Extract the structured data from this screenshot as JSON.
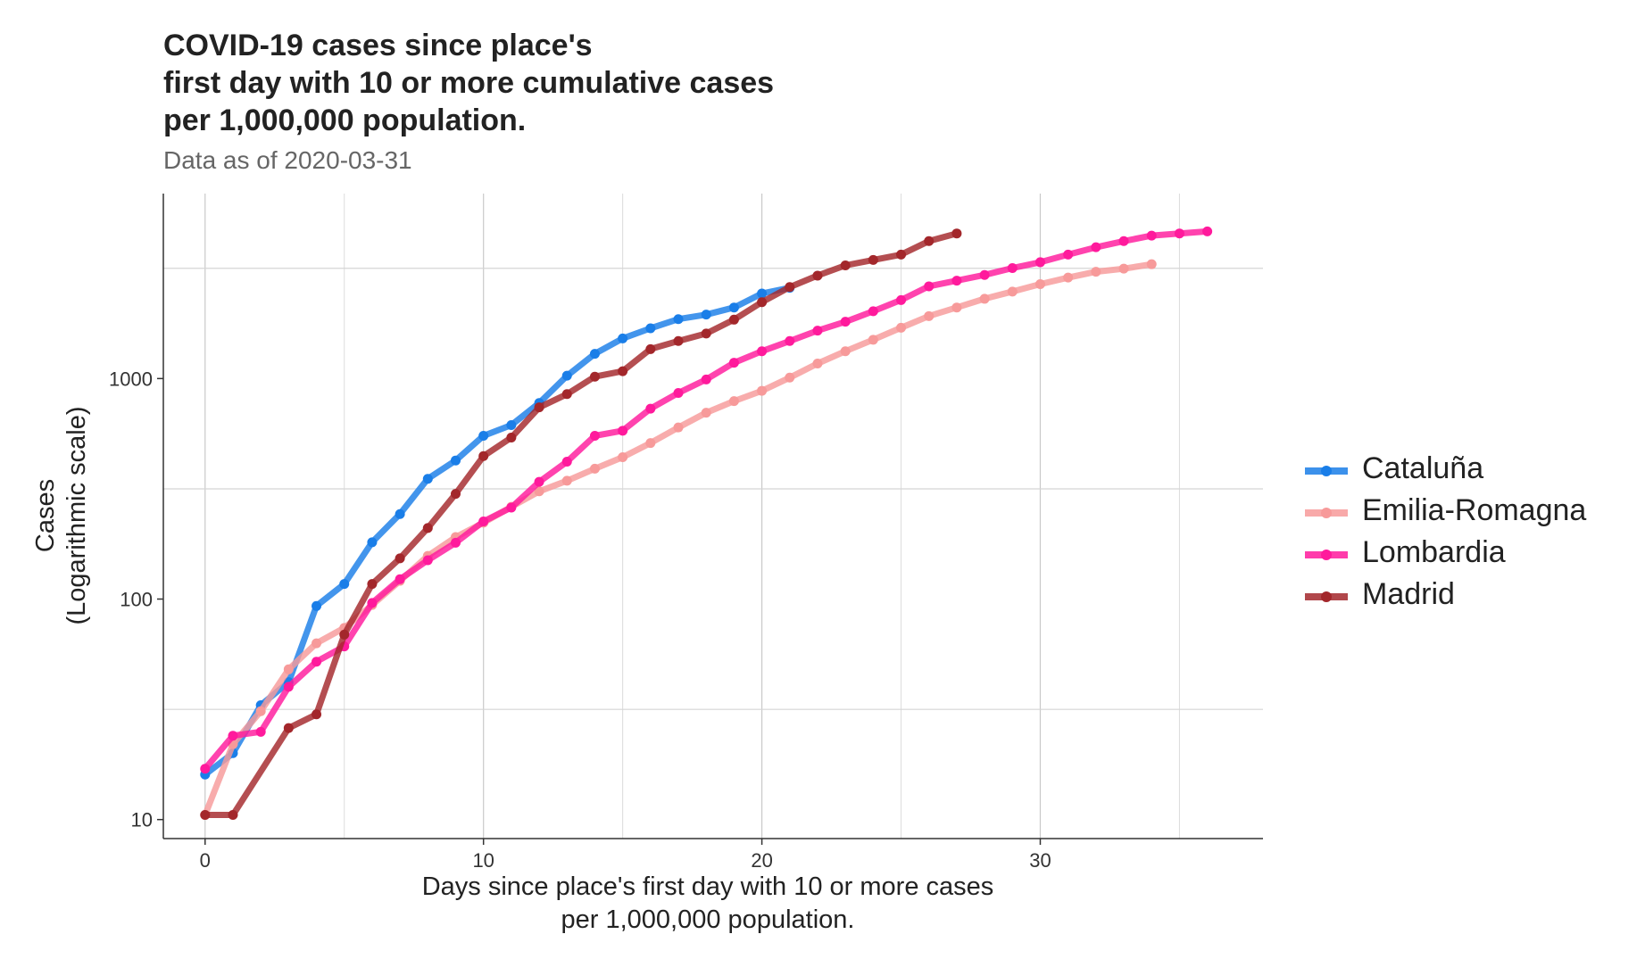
{
  "title_lines": [
    "COVID-19 cases since place's",
    "first day with 10 or more cumulative cases",
    "per 1,000,000 population."
  ],
  "subtitle": "Data as of 2020-03-31",
  "chart_data": {
    "type": "line",
    "title": "COVID-19 cases since place's first day with 10 or more cumulative cases per 1,000,000 population.",
    "subtitle": "Data as of 2020-03-31",
    "xlabel_lines": [
      "Days since place's first day with 10 or more cases",
      "per 1,000,000 population."
    ],
    "ylabel_lines": [
      "Cases",
      "(Logarithmic scale)"
    ],
    "y_scale": "log10",
    "xlim": [
      -1.5,
      38
    ],
    "ylim": [
      8.2,
      6900
    ],
    "x_ticks": [
      0,
      10,
      20,
      30
    ],
    "y_ticks": [
      10,
      100,
      1000
    ],
    "y_minor_gridlines": [
      31.6,
      316,
      3162
    ],
    "grid": true,
    "legend_position": "right",
    "series": [
      {
        "name": "Cataluña",
        "color": "#1a7ee8",
        "x": [
          0,
          1,
          2,
          3,
          4,
          5,
          6,
          7,
          8,
          9,
          10,
          11,
          12,
          13,
          14,
          15,
          16,
          17,
          18,
          19,
          20,
          21
        ],
        "y": [
          16,
          20,
          33,
          42,
          93,
          117,
          181,
          243,
          351,
          425,
          550,
          615,
          775,
          1030,
          1295,
          1520,
          1690,
          1860,
          1950,
          2100,
          2430,
          2580
        ]
      },
      {
        "name": "Emilia-Romagna",
        "color": "#f79a9a",
        "x": [
          0,
          1,
          2,
          3,
          4,
          5,
          6,
          7,
          8,
          9,
          10,
          11,
          12,
          13,
          14,
          15,
          16,
          17,
          18,
          19,
          20,
          21,
          22,
          23,
          24,
          25,
          26,
          27,
          28,
          29,
          30,
          31,
          32,
          33,
          34
        ],
        "y": [
          10.5,
          22,
          31,
          48,
          63,
          74,
          94,
          121,
          157,
          191,
          222,
          262,
          308,
          344,
          390,
          440,
          510,
          600,
          700,
          790,
          880,
          1010,
          1170,
          1330,
          1500,
          1700,
          1920,
          2100,
          2300,
          2480,
          2680,
          2870,
          3050,
          3150,
          3300
        ]
      },
      {
        "name": "Lombardia",
        "color": "#ff1a9c",
        "x": [
          0,
          1,
          2,
          3,
          4,
          5,
          6,
          7,
          8,
          9,
          10,
          11,
          12,
          13,
          14,
          15,
          16,
          17,
          18,
          19,
          20,
          21,
          22,
          23,
          24,
          25,
          26,
          27,
          28,
          29,
          30,
          31,
          32,
          33,
          34,
          35,
          36
        ],
        "y": [
          17,
          24,
          25,
          40,
          52,
          61,
          96,
          123,
          150,
          180,
          225,
          260,
          340,
          420,
          550,
          580,
          730,
          860,
          990,
          1180,
          1330,
          1480,
          1650,
          1810,
          2020,
          2270,
          2620,
          2780,
          2950,
          3170,
          3370,
          3650,
          3940,
          4200,
          4450,
          4550,
          4650
        ]
      },
      {
        "name": "Madrid",
        "color": "#a3272b",
        "x": [
          0,
          1,
          3,
          4,
          5,
          6,
          7,
          8,
          9,
          10,
          11,
          12,
          13,
          14,
          15,
          16,
          17,
          18,
          19,
          20,
          21,
          22,
          23,
          24,
          25,
          26,
          27
        ],
        "y": [
          10.5,
          10.5,
          26,
          30,
          69,
          117,
          153,
          210,
          300,
          445,
          540,
          740,
          850,
          1020,
          1080,
          1360,
          1480,
          1600,
          1850,
          2220,
          2600,
          2930,
          3260,
          3450,
          3650,
          4200,
          4550
        ]
      }
    ]
  }
}
